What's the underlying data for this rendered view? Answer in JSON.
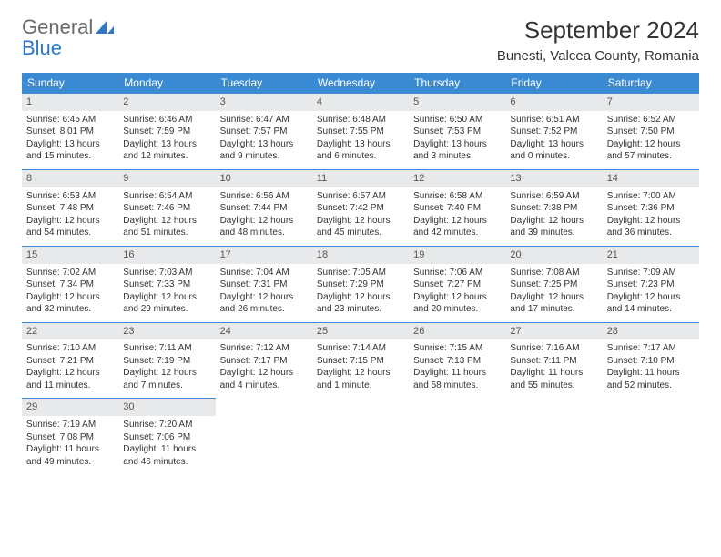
{
  "logo": {
    "text_gray": "General",
    "text_blue": "Blue"
  },
  "header": {
    "month_title": "September 2024",
    "location": "Bunesti, Valcea County, Romania"
  },
  "colors": {
    "header_bg": "#3b8bd4",
    "daynum_bg": "#e7e9eb",
    "daynum_border": "#3b8bd4"
  },
  "day_headers": [
    "Sunday",
    "Monday",
    "Tuesday",
    "Wednesday",
    "Thursday",
    "Friday",
    "Saturday"
  ],
  "weeks": [
    [
      {
        "n": "1",
        "sr": "Sunrise: 6:45 AM",
        "ss": "Sunset: 8:01 PM",
        "d1": "Daylight: 13 hours",
        "d2": "and 15 minutes."
      },
      {
        "n": "2",
        "sr": "Sunrise: 6:46 AM",
        "ss": "Sunset: 7:59 PM",
        "d1": "Daylight: 13 hours",
        "d2": "and 12 minutes."
      },
      {
        "n": "3",
        "sr": "Sunrise: 6:47 AM",
        "ss": "Sunset: 7:57 PM",
        "d1": "Daylight: 13 hours",
        "d2": "and 9 minutes."
      },
      {
        "n": "4",
        "sr": "Sunrise: 6:48 AM",
        "ss": "Sunset: 7:55 PM",
        "d1": "Daylight: 13 hours",
        "d2": "and 6 minutes."
      },
      {
        "n": "5",
        "sr": "Sunrise: 6:50 AM",
        "ss": "Sunset: 7:53 PM",
        "d1": "Daylight: 13 hours",
        "d2": "and 3 minutes."
      },
      {
        "n": "6",
        "sr": "Sunrise: 6:51 AM",
        "ss": "Sunset: 7:52 PM",
        "d1": "Daylight: 13 hours",
        "d2": "and 0 minutes."
      },
      {
        "n": "7",
        "sr": "Sunrise: 6:52 AM",
        "ss": "Sunset: 7:50 PM",
        "d1": "Daylight: 12 hours",
        "d2": "and 57 minutes."
      }
    ],
    [
      {
        "n": "8",
        "sr": "Sunrise: 6:53 AM",
        "ss": "Sunset: 7:48 PM",
        "d1": "Daylight: 12 hours",
        "d2": "and 54 minutes."
      },
      {
        "n": "9",
        "sr": "Sunrise: 6:54 AM",
        "ss": "Sunset: 7:46 PM",
        "d1": "Daylight: 12 hours",
        "d2": "and 51 minutes."
      },
      {
        "n": "10",
        "sr": "Sunrise: 6:56 AM",
        "ss": "Sunset: 7:44 PM",
        "d1": "Daylight: 12 hours",
        "d2": "and 48 minutes."
      },
      {
        "n": "11",
        "sr": "Sunrise: 6:57 AM",
        "ss": "Sunset: 7:42 PM",
        "d1": "Daylight: 12 hours",
        "d2": "and 45 minutes."
      },
      {
        "n": "12",
        "sr": "Sunrise: 6:58 AM",
        "ss": "Sunset: 7:40 PM",
        "d1": "Daylight: 12 hours",
        "d2": "and 42 minutes."
      },
      {
        "n": "13",
        "sr": "Sunrise: 6:59 AM",
        "ss": "Sunset: 7:38 PM",
        "d1": "Daylight: 12 hours",
        "d2": "and 39 minutes."
      },
      {
        "n": "14",
        "sr": "Sunrise: 7:00 AM",
        "ss": "Sunset: 7:36 PM",
        "d1": "Daylight: 12 hours",
        "d2": "and 36 minutes."
      }
    ],
    [
      {
        "n": "15",
        "sr": "Sunrise: 7:02 AM",
        "ss": "Sunset: 7:34 PM",
        "d1": "Daylight: 12 hours",
        "d2": "and 32 minutes."
      },
      {
        "n": "16",
        "sr": "Sunrise: 7:03 AM",
        "ss": "Sunset: 7:33 PM",
        "d1": "Daylight: 12 hours",
        "d2": "and 29 minutes."
      },
      {
        "n": "17",
        "sr": "Sunrise: 7:04 AM",
        "ss": "Sunset: 7:31 PM",
        "d1": "Daylight: 12 hours",
        "d2": "and 26 minutes."
      },
      {
        "n": "18",
        "sr": "Sunrise: 7:05 AM",
        "ss": "Sunset: 7:29 PM",
        "d1": "Daylight: 12 hours",
        "d2": "and 23 minutes."
      },
      {
        "n": "19",
        "sr": "Sunrise: 7:06 AM",
        "ss": "Sunset: 7:27 PM",
        "d1": "Daylight: 12 hours",
        "d2": "and 20 minutes."
      },
      {
        "n": "20",
        "sr": "Sunrise: 7:08 AM",
        "ss": "Sunset: 7:25 PM",
        "d1": "Daylight: 12 hours",
        "d2": "and 17 minutes."
      },
      {
        "n": "21",
        "sr": "Sunrise: 7:09 AM",
        "ss": "Sunset: 7:23 PM",
        "d1": "Daylight: 12 hours",
        "d2": "and 14 minutes."
      }
    ],
    [
      {
        "n": "22",
        "sr": "Sunrise: 7:10 AM",
        "ss": "Sunset: 7:21 PM",
        "d1": "Daylight: 12 hours",
        "d2": "and 11 minutes."
      },
      {
        "n": "23",
        "sr": "Sunrise: 7:11 AM",
        "ss": "Sunset: 7:19 PM",
        "d1": "Daylight: 12 hours",
        "d2": "and 7 minutes."
      },
      {
        "n": "24",
        "sr": "Sunrise: 7:12 AM",
        "ss": "Sunset: 7:17 PM",
        "d1": "Daylight: 12 hours",
        "d2": "and 4 minutes."
      },
      {
        "n": "25",
        "sr": "Sunrise: 7:14 AM",
        "ss": "Sunset: 7:15 PM",
        "d1": "Daylight: 12 hours",
        "d2": "and 1 minute."
      },
      {
        "n": "26",
        "sr": "Sunrise: 7:15 AM",
        "ss": "Sunset: 7:13 PM",
        "d1": "Daylight: 11 hours",
        "d2": "and 58 minutes."
      },
      {
        "n": "27",
        "sr": "Sunrise: 7:16 AM",
        "ss": "Sunset: 7:11 PM",
        "d1": "Daylight: 11 hours",
        "d2": "and 55 minutes."
      },
      {
        "n": "28",
        "sr": "Sunrise: 7:17 AM",
        "ss": "Sunset: 7:10 PM",
        "d1": "Daylight: 11 hours",
        "d2": "and 52 minutes."
      }
    ],
    [
      {
        "n": "29",
        "sr": "Sunrise: 7:19 AM",
        "ss": "Sunset: 7:08 PM",
        "d1": "Daylight: 11 hours",
        "d2": "and 49 minutes."
      },
      {
        "n": "30",
        "sr": "Sunrise: 7:20 AM",
        "ss": "Sunset: 7:06 PM",
        "d1": "Daylight: 11 hours",
        "d2": "and 46 minutes."
      },
      null,
      null,
      null,
      null,
      null
    ]
  ]
}
